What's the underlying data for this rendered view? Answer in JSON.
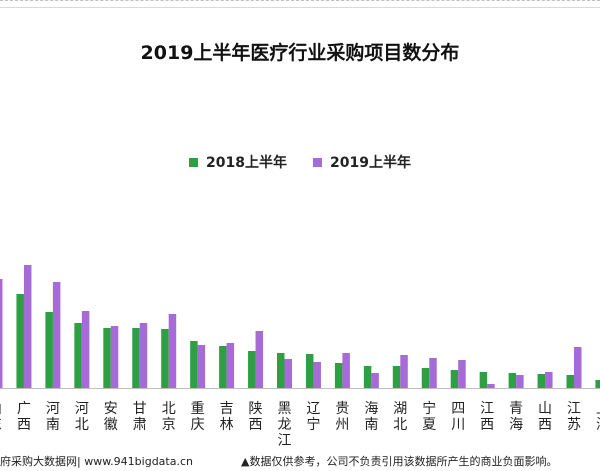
{
  "chart_data": {
    "type": "bar",
    "title": "2019上半年医疗行业采购项目数分布",
    "legend_position": "top-center",
    "grid": false,
    "ylim": [
      0,
      130
    ],
    "categories": [
      [
        "山",
        "东"
      ],
      [
        "广",
        "西"
      ],
      [
        "河",
        "南"
      ],
      [
        "河",
        "北"
      ],
      [
        "安",
        "徽"
      ],
      [
        "甘",
        "肃"
      ],
      [
        "北",
        "京"
      ],
      [
        "重",
        "庆"
      ],
      [
        "吉",
        "林"
      ],
      [
        "陕",
        "西"
      ],
      [
        "黑",
        "龙",
        "江"
      ],
      [
        "辽",
        "宁"
      ],
      [
        "贵",
        "州"
      ],
      [
        "海",
        "南"
      ],
      [
        "湖",
        "北"
      ],
      [
        "宁",
        "夏"
      ],
      [
        "四",
        "川"
      ],
      [
        "江",
        "西"
      ],
      [
        "青",
        "海"
      ],
      [
        "山",
        "西"
      ],
      [
        "江",
        "苏"
      ],
      [
        "上",
        "海"
      ]
    ],
    "series": [
      {
        "name": "2018上半年",
        "color": "#2ea043",
        "values": [
          null,
          94,
          76,
          65,
          60,
          60,
          59,
          47,
          42,
          37,
          35,
          34,
          25,
          22,
          22,
          20,
          18,
          16,
          15,
          14,
          13,
          8
        ]
      },
      {
        "name": "2019上半年",
        "color": "#a66bd6",
        "values": [
          109,
          123,
          106,
          77,
          62,
          65,
          74,
          43,
          45,
          57,
          29,
          26,
          35,
          15,
          33,
          30,
          28,
          4,
          13,
          16,
          41,
          null
        ]
      }
    ]
  },
  "footer": {
    "source": "府采购大数据网| www.941bigdata.cn",
    "disclaimer": "▲数据仅供参考，公司不负责引用该数据所产生的商业负面影响。"
  }
}
